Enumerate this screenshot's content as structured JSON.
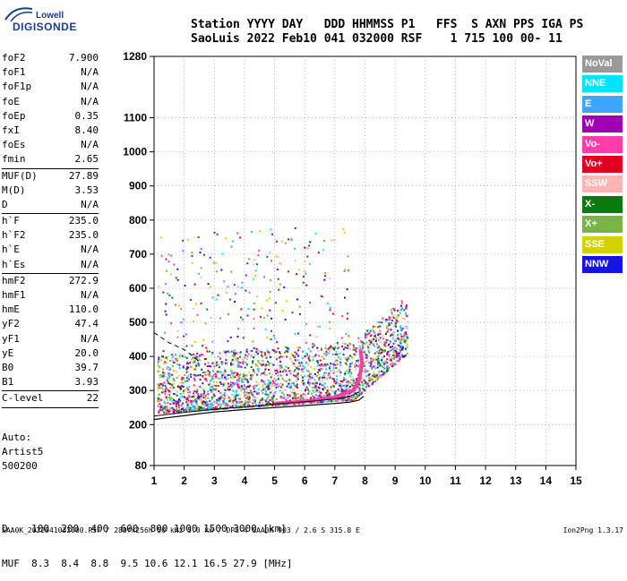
{
  "logo": {
    "line1": "Lowell",
    "line2": "DIGISONDE"
  },
  "header": {
    "line1": "Station YYYY DAY   DDD HHMMSS P1   FFS  S AXN PPS IGA PS",
    "line2": "SaoLuis 2022 Feb10 041 032000 RSF    1 715 100 00- 11"
  },
  "params": [
    {
      "label": "foF2",
      "value": "7.900"
    },
    {
      "label": "foF1",
      "value": "N/A"
    },
    {
      "label": "foF1p",
      "value": "N/A"
    },
    {
      "label": "foE",
      "value": "N/A"
    },
    {
      "label": "foEp",
      "value": "0.35"
    },
    {
      "label": "fxI",
      "value": "8.40"
    },
    {
      "label": "foEs",
      "value": "N/A"
    },
    {
      "label": "fmin",
      "value": "2.65"
    },
    {
      "sep": true
    },
    {
      "label": "MUF(D)",
      "value": "27.89"
    },
    {
      "label": "M(D)",
      "value": "3.53"
    },
    {
      "label": "D",
      "value": "N/A"
    },
    {
      "sep": true
    },
    {
      "label": "h`F",
      "value": "235.0"
    },
    {
      "label": "h`F2",
      "value": "235.0"
    },
    {
      "label": "h`E",
      "value": "N/A"
    },
    {
      "label": "h`Es",
      "value": "N/A"
    },
    {
      "sep": true
    },
    {
      "label": "hmF2",
      "value": "272.9"
    },
    {
      "label": "hmF1",
      "value": "N/A"
    },
    {
      "label": "hmE",
      "value": "110.0"
    },
    {
      "label": "yF2",
      "value": "47.4"
    },
    {
      "label": "yF1",
      "value": "N/A"
    },
    {
      "label": "yE",
      "value": "20.0"
    },
    {
      "label": "B0",
      "value": "39.7"
    },
    {
      "label": "B1",
      "value": "3.93"
    },
    {
      "sep": true
    },
    {
      "label": "C-level",
      "value": "22"
    },
    {
      "sep": true
    }
  ],
  "auto": {
    "line1": "Auto:",
    "line2": "Artist5",
    "line3": "500200"
  },
  "dtable": {
    "row1": "D    100  200  400  600  800 1000 1500 3000 [km]",
    "row2": "MUF  8.3  8.4  8.8  9.5 10.6 12.1 16.5 27.9 [MHz]"
  },
  "footer": "SAA0K_2022041032000.RSF / 280fx256h 50 kHz 5.0 km / DPS-4 SAA0K 903 / 2.6 S 315.8 E",
  "version": "Ion2Png 1.3.17",
  "legend": [
    {
      "label": "NoVal",
      "color": "#999999"
    },
    {
      "label": "NNE",
      "color": "#00e5ff"
    },
    {
      "label": "E",
      "color": "#3fa6ff"
    },
    {
      "label": "W",
      "color": "#a000b4"
    },
    {
      "label": "Vo-",
      "color": "#ff3caa"
    },
    {
      "label": "Vo+",
      "color": "#e00020"
    },
    {
      "label": "SSW",
      "color": "#ffb4b4"
    },
    {
      "label": "X-",
      "color": "#0a7a10"
    },
    {
      "label": "X+",
      "color": "#78b446"
    },
    {
      "label": "SSE",
      "color": "#d2d200"
    },
    {
      "label": "NNW",
      "color": "#1414e6"
    }
  ],
  "chart_data": {
    "type": "scatter",
    "x_ticks": [
      "1",
      "2",
      "3",
      "4",
      "5",
      "6",
      "7",
      "8",
      "9",
      "10",
      "11",
      "12",
      "13",
      "14",
      "15"
    ],
    "y_ticks": [
      "80",
      "200",
      "300",
      "400",
      "500",
      "600",
      "700",
      "800",
      "900",
      "1000",
      "1100",
      "1280"
    ],
    "xlim": [
      1,
      15
    ],
    "ylim": [
      80,
      1280
    ],
    "grid": true,
    "grid_style": "dotted",
    "trace_color": "#000000",
    "profile_color": "#ff3caa",
    "virtual_height_trace": [
      {
        "x": 1.0,
        "y": 215
      },
      {
        "x": 1.5,
        "y": 221
      },
      {
        "x": 2.0,
        "y": 226
      },
      {
        "x": 2.5,
        "y": 232
      },
      {
        "x": 3.0,
        "y": 237
      },
      {
        "x": 4.0,
        "y": 244
      },
      {
        "x": 5.0,
        "y": 250
      },
      {
        "x": 6.0,
        "y": 256
      },
      {
        "x": 7.0,
        "y": 262
      },
      {
        "x": 7.5,
        "y": 266
      },
      {
        "x": 7.8,
        "y": 272
      },
      {
        "x": 7.95,
        "y": 283
      }
    ],
    "upper_trace": [
      {
        "x": 1.0,
        "y": 225
      },
      {
        "x": 2.0,
        "y": 236
      },
      {
        "x": 3.0,
        "y": 245
      },
      {
        "x": 4.0,
        "y": 252
      },
      {
        "x": 5.0,
        "y": 260
      },
      {
        "x": 6.0,
        "y": 267
      },
      {
        "x": 7.0,
        "y": 275
      },
      {
        "x": 7.5,
        "y": 283
      },
      {
        "x": 7.8,
        "y": 296
      }
    ],
    "dashed_trace": [
      {
        "x": 1.0,
        "y": 470
      },
      {
        "x": 1.5,
        "y": 440
      },
      {
        "x": 2.0,
        "y": 420
      },
      {
        "x": 2.3,
        "y": 400
      },
      {
        "x": 2.5,
        "y": 385
      }
    ],
    "profile": [
      {
        "x": 5.0,
        "y": 262
      },
      {
        "x": 6.0,
        "y": 268
      },
      {
        "x": 7.0,
        "y": 280
      },
      {
        "x": 7.6,
        "y": 300
      },
      {
        "x": 7.8,
        "y": 330
      },
      {
        "x": 7.9,
        "y": 380
      },
      {
        "x": 7.85,
        "y": 420
      }
    ]
  }
}
